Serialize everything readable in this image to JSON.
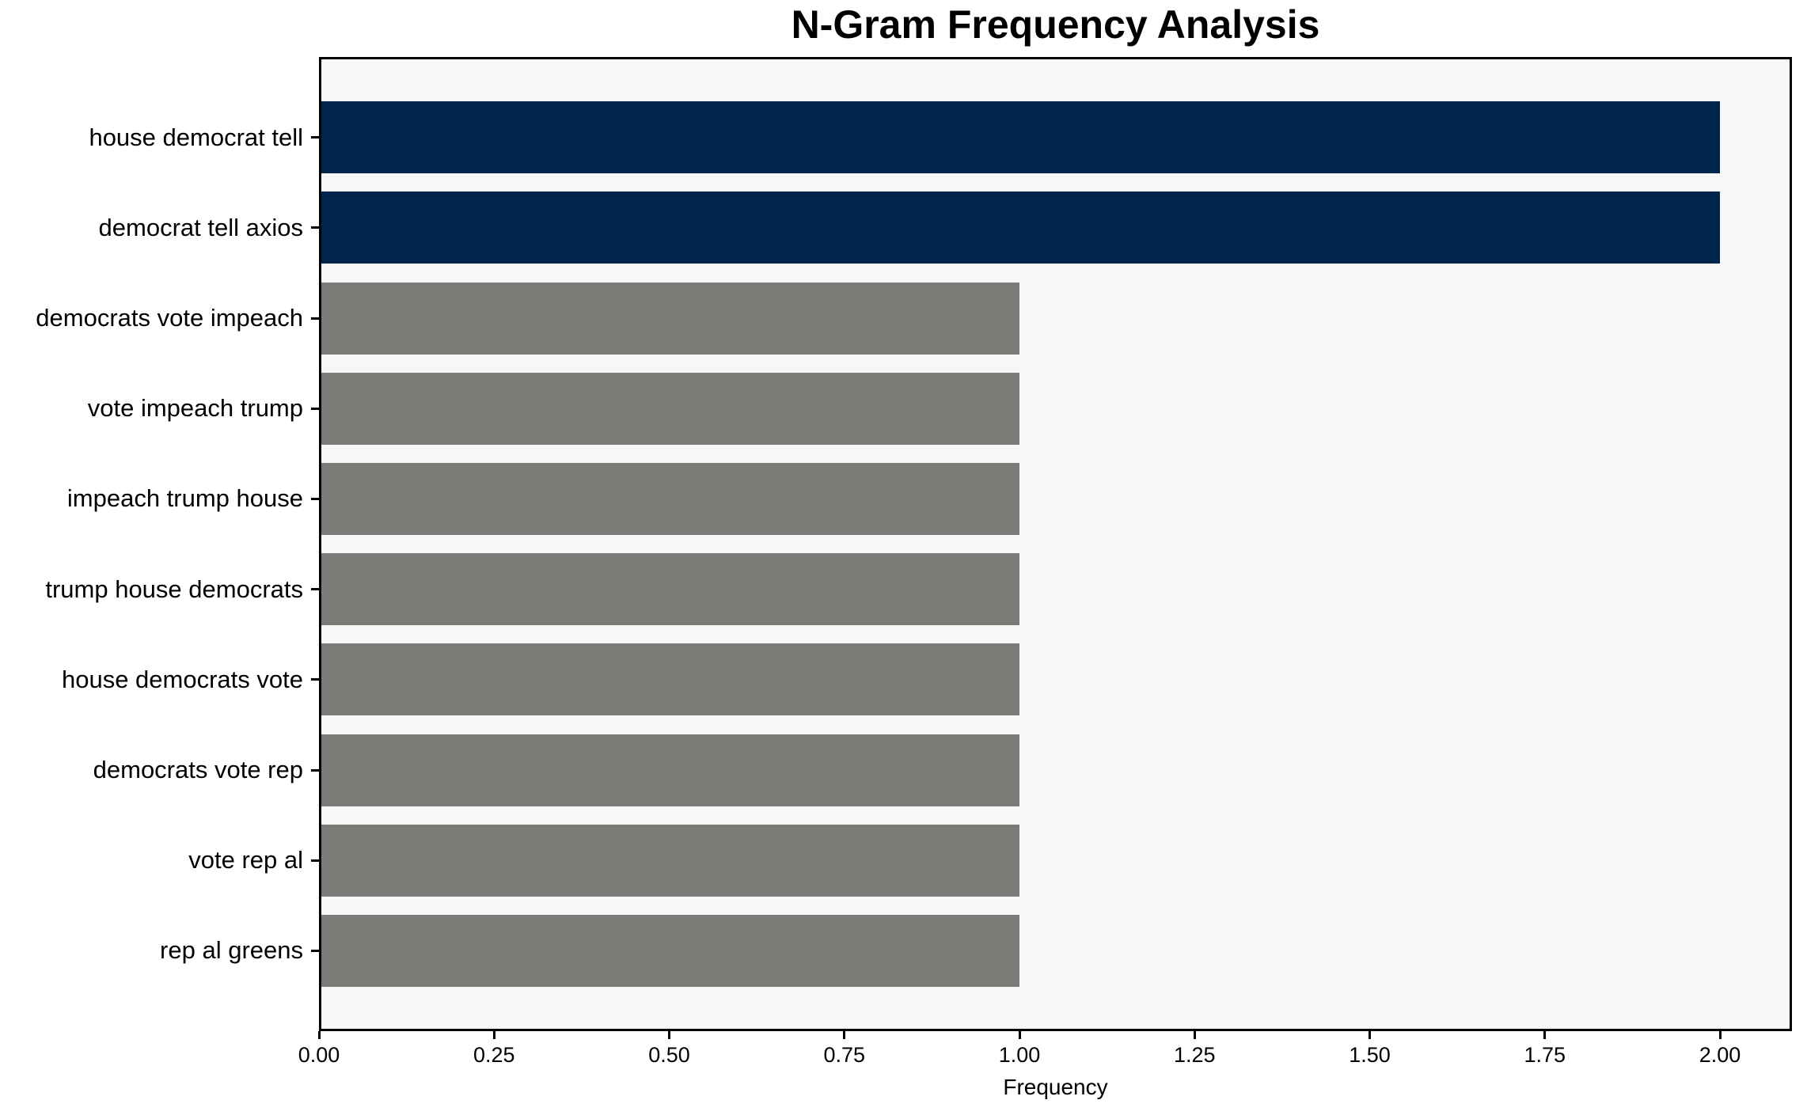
{
  "chart_data": {
    "type": "bar",
    "orientation": "horizontal",
    "title": "N-Gram Frequency Analysis",
    "xlabel": "Frequency",
    "ylabel": "",
    "categories": [
      "house democrat tell",
      "democrat tell axios",
      "democrats vote impeach",
      "vote impeach trump",
      "impeach trump house",
      "trump house democrats",
      "house democrats vote",
      "democrats vote rep",
      "vote rep al",
      "rep al greens"
    ],
    "values": [
      2,
      2,
      1,
      1,
      1,
      1,
      1,
      1,
      1,
      1
    ],
    "xlim": [
      0.0,
      2.0
    ],
    "xtick_labels": [
      "0.00",
      "0.25",
      "0.50",
      "0.75",
      "1.00",
      "1.25",
      "1.50",
      "1.75",
      "2.00"
    ],
    "xtick_values": [
      0.0,
      0.25,
      0.5,
      0.75,
      1.0,
      1.25,
      1.5,
      1.75,
      2.0
    ],
    "grid": false,
    "legend": null,
    "bar_colors": [
      "#00254d",
      "#00254d",
      "#7b7b77",
      "#7b7b77",
      "#7b7b77",
      "#7b7b77",
      "#7b7b77",
      "#7b7b77",
      "#7b7b77",
      "#7b7b77"
    ],
    "colors": {
      "highlight_bar": "#00254d",
      "default_bar": "#7b7b77",
      "plot_background": "#f8f7f7",
      "figure_background": "#ffffff",
      "spine": "#000000",
      "text": "#000000"
    }
  }
}
